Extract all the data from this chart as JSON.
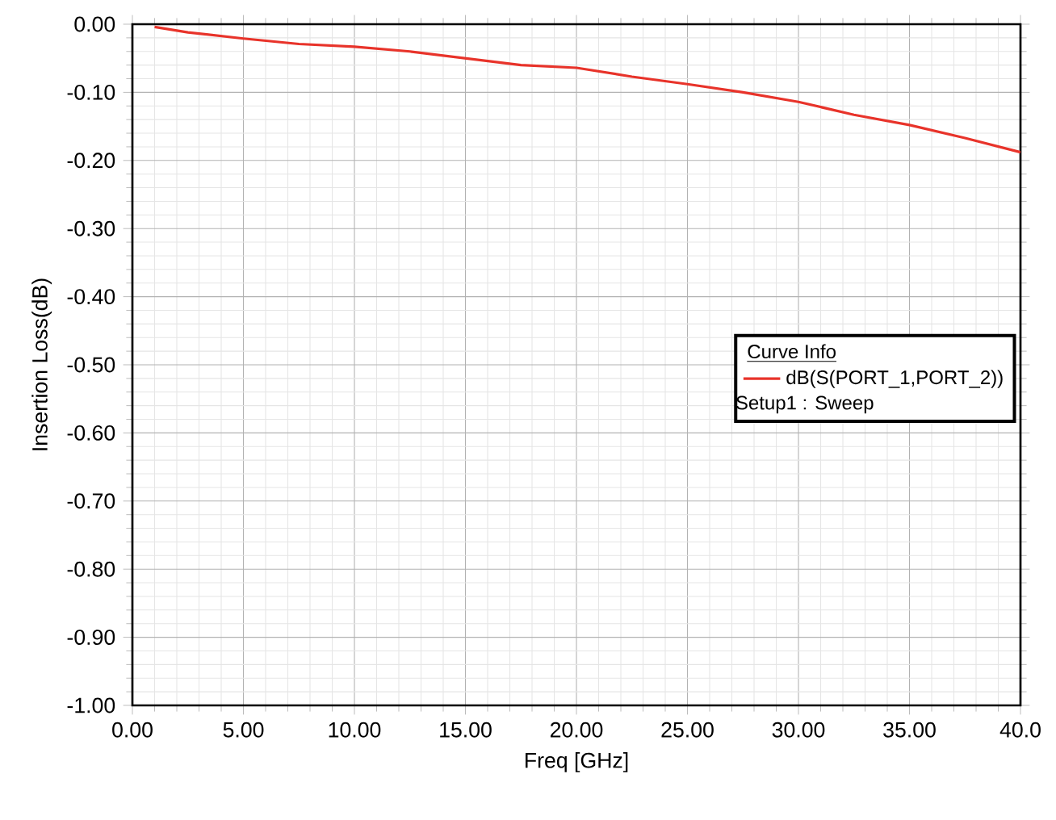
{
  "chart_data": {
    "type": "line",
    "xlabel": "Freq [GHz]",
    "ylabel": "Insertion Loss(dB)",
    "legend_title": "Curve Info",
    "legend": "right",
    "grid": true,
    "xlim": [
      0,
      40
    ],
    "ylim": [
      -1,
      0
    ],
    "xticks": [
      {
        "value": 0,
        "label": "0.00"
      },
      {
        "value": 5,
        "label": "5.00"
      },
      {
        "value": 10,
        "label": "10.00"
      },
      {
        "value": 15,
        "label": "15.00"
      },
      {
        "value": 20,
        "label": "20.00"
      },
      {
        "value": 25,
        "label": "25.00"
      },
      {
        "value": 30,
        "label": "30.00"
      },
      {
        "value": 35,
        "label": "35.00"
      },
      {
        "value": 40,
        "label": "40.0"
      }
    ],
    "yticks": [
      {
        "value": -1,
        "label": "-1.00"
      },
      {
        "value": -0.9,
        "label": "-0.90"
      },
      {
        "value": -0.8,
        "label": "-0.80"
      },
      {
        "value": -0.7,
        "label": "-0.70"
      },
      {
        "value": -0.6,
        "label": "-0.60"
      },
      {
        "value": -0.5,
        "label": "-0.50"
      },
      {
        "value": -0.4,
        "label": "-0.40"
      },
      {
        "value": -0.3,
        "label": "-0.30"
      },
      {
        "value": -0.2,
        "label": "-0.20"
      },
      {
        "value": -0.1,
        "label": "-0.10"
      },
      {
        "value": 0,
        "label": "0.00"
      }
    ],
    "annotations": [
      "Setup1 : Sweep"
    ],
    "series": [
      {
        "name": "dB(S(PORT_1,PORT_2))",
        "color": "#e8332a",
        "x": [
          1,
          2.5,
          5,
          7.5,
          10,
          12.5,
          15,
          17.5,
          20,
          22.5,
          25,
          27.5,
          30,
          32.5,
          35,
          37.5,
          40
        ],
        "values": [
          -0.004,
          -0.012,
          -0.021,
          -0.029,
          -0.033,
          -0.04,
          -0.05,
          -0.06,
          -0.064,
          -0.077,
          -0.088,
          -0.1,
          -0.114,
          -0.133,
          -0.148,
          -0.167,
          -0.188
        ]
      }
    ]
  }
}
